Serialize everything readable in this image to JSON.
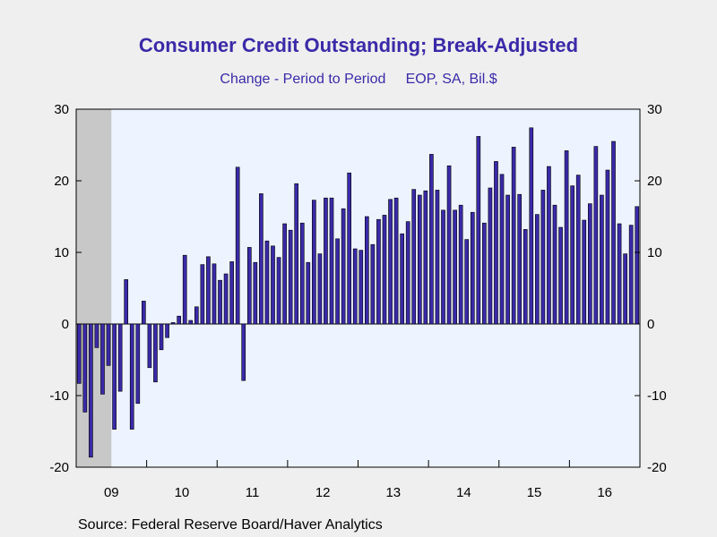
{
  "chart_data": {
    "type": "bar",
    "title": "Consumer Credit Outstanding; Break-Adjusted",
    "subtitle": "Change - Period to Period     EOP, SA, Bil.$",
    "source": "Source:  Federal Reserve Board/Haver Analytics",
    "ylim": [
      -20,
      30
    ],
    "y_ticks": [
      30,
      20,
      10,
      0,
      -10,
      -20
    ],
    "y_tick_labels": [
      "30",
      "20",
      "10",
      "0",
      "-10",
      "-20"
    ],
    "x_tick_labels": [
      "09",
      "10",
      "11",
      "12",
      "13",
      "14",
      "15",
      "16"
    ],
    "start": "2009-01",
    "frequency": "monthly",
    "recession_shading": [
      "2009-01",
      "2009-06"
    ],
    "colors": {
      "bar_fill": "#3a2aa8",
      "bar_stroke": "#000000",
      "plot_bg": "#eef4ff",
      "recession": "#c8c8c8",
      "title": "#3a2aa8"
    },
    "values": [
      -8.3,
      -12.3,
      -18.6,
      -3.3,
      -9.8,
      -5.8,
      -14.7,
      -9.4,
      6.2,
      -14.7,
      -11.1,
      3.2,
      -6.1,
      -8.1,
      -3.6,
      -1.9,
      0.2,
      1.1,
      9.6,
      0.5,
      2.4,
      8.3,
      9.4,
      8.4,
      6.1,
      7.0,
      8.7,
      21.9,
      -7.9,
      10.7,
      8.6,
      18.2,
      11.6,
      10.9,
      9.3,
      14.0,
      13.1,
      19.6,
      14.1,
      8.6,
      17.3,
      9.8,
      17.6,
      17.6,
      11.9,
      16.1,
      21.1,
      10.5,
      10.3,
      15.0,
      11.1,
      14.6,
      15.2,
      17.4,
      17.6,
      12.6,
      14.3,
      18.8,
      18.0,
      18.6,
      23.7,
      18.7,
      15.9,
      22.1,
      15.9,
      16.6,
      11.8,
      15.6,
      26.2,
      14.1,
      19.0,
      22.7,
      20.9,
      18.0,
      24.7,
      18.1,
      13.2,
      27.4,
      15.3,
      18.7,
      22.0,
      16.6,
      13.5,
      24.2,
      19.3,
      20.8,
      14.5,
      16.8,
      24.8,
      18.0,
      21.5,
      25.5,
      14.0,
      9.8,
      13.8,
      16.4
    ]
  }
}
